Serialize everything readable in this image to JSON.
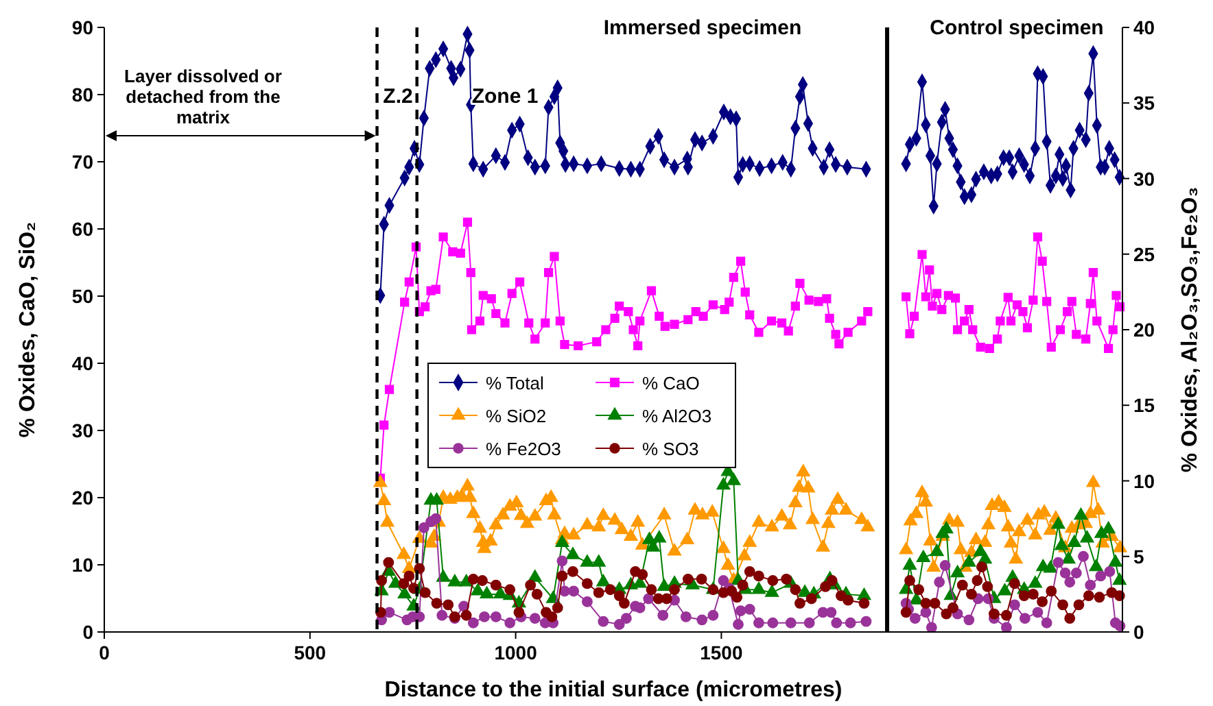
{
  "chart_data": {
    "type": "line",
    "xlabel": "Distance to the initial surface (micrometres)",
    "ylabel": "% Oxides, CaO, SiO₂",
    "y2label": "% Oxides, Al₂O₃,SO₃,Fe₂O₃",
    "xlim": [
      0,
      2475
    ],
    "xticks": [
      0,
      500,
      1000,
      1500
    ],
    "ylim": [
      0,
      90
    ],
    "yticks": [
      0,
      10,
      20,
      30,
      40,
      50,
      60,
      70,
      80,
      90
    ],
    "y2lim": [
      0,
      40
    ],
    "y2ticks": [
      0,
      5,
      10,
      15,
      20,
      25,
      30,
      35,
      40
    ],
    "legend": "center",
    "line_style": "solid",
    "ref_lines": [
      {
        "axis": "x",
        "value": 663,
        "color": "#000000",
        "line_style": "dashed"
      },
      {
        "axis": "x",
        "value": 760,
        "color": "#000000",
        "line_style": "dashed"
      },
      {
        "axis": "x",
        "value": 1903,
        "color": "#000000",
        "line_style": "solid"
      }
    ],
    "annotations": [
      "Immersed specimen",
      "Control specimen",
      "Z.2",
      "Zone 1",
      "Layer dissolved or detached from the matrix"
    ],
    "series": [
      {
        "name": "% Total",
        "color": "#000080",
        "marker": "diamond",
        "x": [
          671,
          680,
          693,
          730,
          741,
          754,
          766,
          777,
          791,
          806,
          824,
          843,
          849,
          866,
          883,
          888,
          891,
          897,
          921,
          952,
          974,
          991,
          1010,
          1030,
          1047,
          1072,
          1080,
          1094,
          1102,
          1108,
          1116,
          1121,
          1141,
          1174,
          1208,
          1252,
          1280,
          1302,
          1327,
          1347,
          1361,
          1386,
          1417,
          1419,
          1436,
          1453,
          1480,
          1506,
          1522,
          1536,
          1541,
          1552,
          1569,
          1593,
          1622,
          1649,
          1669,
          1680,
          1691,
          1698,
          1711,
          1722,
          1749,
          1763,
          1778,
          1806,
          1852,
          1900,
          1949,
          1958,
          1974,
          1988,
          1997,
          2008,
          2016,
          2024,
          2036,
          2044,
          2054,
          2063,
          2074,
          2082,
          2091,
          2108,
          2119,
          2138,
          2156,
          2171,
          2186,
          2200,
          2208,
          2224,
          2236,
          2250,
          2263,
          2269,
          2282,
          2291,
          2300,
          2313,
          2322,
          2330,
          2338,
          2349,
          2356,
          2371,
          2386,
          2393,
          2404,
          2413,
          2422,
          2432,
          2443,
          2456,
          2468
        ],
        "values": [
          50.1,
          60.7,
          63.5,
          67.6,
          69.2,
          72.0,
          69.6,
          76.5,
          83.9,
          85.2,
          86.8,
          83.9,
          82.5,
          83.8,
          89.0,
          86.6,
          78.5,
          69.7,
          68.9,
          70.9,
          69.9,
          74.7,
          75.6,
          70.6,
          69.2,
          69.4,
          78.1,
          79.7,
          81.0,
          72.8,
          71.6,
          69.6,
          69.7,
          69.4,
          69.7,
          69.0,
          68.9,
          68.9,
          72.3,
          73.8,
          70.3,
          69.2,
          70.4,
          69.2,
          73.3,
          72.8,
          73.8,
          77.4,
          76.7,
          76.4,
          67.7,
          69.6,
          69.7,
          69.0,
          69.4,
          69.9,
          68.9,
          75.0,
          79.7,
          81.5,
          75.7,
          72.0,
          69.2,
          71.8,
          69.6,
          69.2,
          68.9,
          null,
          69.7,
          72.6,
          73.5,
          81.9,
          75.5,
          70.9,
          63.4,
          69.7,
          75.9,
          77.8,
          73.5,
          71.8,
          69.4,
          67.0,
          64.8,
          65.1,
          67.4,
          68.5,
          67.9,
          68.2,
          70.6,
          70.6,
          68.5,
          70.9,
          69.6,
          67.9,
          72.0,
          83.1,
          82.7,
          73.0,
          66.5,
          67.9,
          71.1,
          67.5,
          69.4,
          65.8,
          72.0,
          74.7,
          73.3,
          80.2,
          86.1,
          75.4,
          69.2,
          69.2,
          72.0,
          70.3,
          67.7
        ]
      },
      {
        "name": "% CaO",
        "color": "#ff00ff",
        "marker": "square",
        "x": [
          671,
          680,
          693,
          730,
          741,
          758,
          766,
          780,
          794,
          806,
          824,
          847,
          866,
          883,
          891,
          893,
          913,
          921,
          941,
          952,
          974,
          991,
          1010,
          1032,
          1047,
          1072,
          1080,
          1094,
          1108,
          1119,
          1152,
          1197,
          1219,
          1241,
          1252,
          1274,
          1286,
          1297,
          1302,
          1330,
          1349,
          1363,
          1386,
          1419,
          1438,
          1456,
          1480,
          1508,
          1519,
          1530,
          1547,
          1558,
          1569,
          1591,
          1622,
          1647,
          1663,
          1680,
          1691,
          1713,
          1736,
          1756,
          1763,
          1778,
          1786,
          1808,
          1841,
          1856,
          1900,
          1949,
          1958,
          1969,
          1988,
          1997,
          2006,
          2013,
          2024,
          2036,
          2052,
          2069,
          2074,
          2091,
          2102,
          2111,
          2130,
          2152,
          2171,
          2178,
          2197,
          2204,
          2219,
          2233,
          2244,
          2258,
          2269,
          2280,
          2291,
          2302,
          2324,
          2341,
          2352,
          2363,
          2386,
          2397,
          2404,
          2413,
          2441,
          2452,
          2460,
          2469
        ],
        "values": [
          22.9,
          30.8,
          36.1,
          49.1,
          52.1,
          57.3,
          47.7,
          48.4,
          50.8,
          51.0,
          58.8,
          56.6,
          56.4,
          61.0,
          53.5,
          45.0,
          46.3,
          50.1,
          49.6,
          47.4,
          46.0,
          50.4,
          52.1,
          46.0,
          43.6,
          46.0,
          53.5,
          55.9,
          46.3,
          42.8,
          42.6,
          43.2,
          45.0,
          46.7,
          48.5,
          47.7,
          45.0,
          42.6,
          46.3,
          50.8,
          47.0,
          45.5,
          45.8,
          46.5,
          47.7,
          47.0,
          48.7,
          48.0,
          49.1,
          52.8,
          55.2,
          50.6,
          47.2,
          44.6,
          46.3,
          46.0,
          44.8,
          48.5,
          51.9,
          49.4,
          49.2,
          49.6,
          46.7,
          44.3,
          42.9,
          44.6,
          46.3,
          47.7,
          null,
          49.9,
          44.4,
          47.0,
          56.2,
          49.9,
          53.9,
          48.5,
          50.4,
          48.0,
          50.1,
          49.7,
          45.0,
          46.3,
          48.0,
          45.0,
          42.4,
          42.2,
          43.6,
          46.3,
          49.8,
          46.3,
          48.7,
          47.7,
          45.3,
          49.4,
          58.8,
          55.2,
          49.2,
          42.4,
          45.0,
          47.7,
          49.2,
          44.3,
          43.6,
          48.9,
          53.5,
          46.3,
          42.2,
          45.0,
          50.1,
          48.4
        ]
      },
      {
        "name": "% SiO2",
        "color": "#ff9900",
        "marker": "triangle",
        "x": [
          671,
          680,
          688,
          728,
          741,
          766,
          794,
          802,
          813,
          824,
          841,
          858,
          869,
          883,
          889,
          897,
          913,
          921,
          924,
          939,
          952,
          969,
          986,
          1002,
          1013,
          1028,
          1047,
          1074,
          1086,
          1094,
          1113,
          1119,
          1141,
          1174,
          1202,
          1213,
          1241,
          1258,
          1280,
          1297,
          1308,
          1361,
          1386,
          1417,
          1436,
          1454,
          1478,
          1505,
          1516,
          1530,
          1556,
          1569,
          1591,
          1623,
          1647,
          1667,
          1680,
          1689,
          1699,
          1711,
          1722,
          1747,
          1760,
          1769,
          1783,
          1803,
          1841,
          1856,
          1900,
          1949,
          1960,
          1974,
          1988,
          1997,
          2008,
          2016,
          2038,
          2054,
          2074,
          2082,
          2093,
          2108,
          2119,
          2141,
          2149,
          2158,
          2174,
          2188,
          2197,
          2204,
          2216,
          2224,
          2244,
          2263,
          2271,
          2285,
          2300,
          2313,
          2336,
          2352,
          2369,
          2386,
          2397,
          2404,
          2416,
          2427,
          2449,
          2469
        ],
        "values": [
          22.2,
          19.5,
          16.3,
          11.5,
          9.4,
          13.9,
          13.2,
          14.2,
          16.3,
          20.0,
          19.7,
          20.0,
          20.2,
          21.7,
          20.0,
          17.6,
          15.4,
          13.3,
          12.4,
          13.5,
          15.9,
          17.4,
          18.7,
          19.2,
          17.3,
          16.1,
          17.2,
          19.5,
          20.0,
          17.4,
          13.7,
          14.6,
          14.4,
          15.9,
          15.6,
          17.3,
          16.6,
          15.2,
          14.2,
          16.3,
          12.9,
          17.4,
          12.0,
          13.7,
          18.1,
          17.4,
          17.8,
          12.4,
          9.9,
          7.7,
          11.3,
          13.3,
          16.3,
          15.6,
          17.2,
          15.9,
          19.2,
          21.5,
          23.8,
          21.4,
          16.7,
          12.6,
          16.1,
          18.1,
          19.7,
          18.1,
          16.7,
          15.6,
          null,
          12.2,
          16.5,
          17.6,
          20.7,
          19.3,
          13.5,
          9.6,
          14.2,
          16.6,
          16.3,
          12.2,
          9.6,
          11.8,
          13.7,
          13.3,
          15.9,
          18.8,
          19.3,
          18.5,
          15.6,
          13.2,
          10.8,
          14.9,
          16.6,
          14.4,
          17.4,
          17.8,
          15.1,
          16.9,
          12.5,
          15.4,
          15.9,
          16.1,
          17.6,
          22.2,
          18.1,
          13.2,
          14.2,
          12.5
        ]
      },
      {
        "name": "% Al2O3",
        "color": "#008000",
        "marker": "triangle",
        "axis": "y2",
        "x": [
          674,
          691,
          708,
          730,
          752,
          766,
          794,
          808,
          824,
          852,
          880,
          908,
          930,
          963,
          986,
          1008,
          1047,
          1091,
          1113,
          1139,
          1174,
          1202,
          1213,
          1252,
          1280,
          1302,
          1325,
          1334,
          1349,
          1361,
          1386,
          1430,
          1480,
          1505,
          1516,
          1530,
          1541,
          1558,
          1591,
          1623,
          1669,
          1703,
          1725,
          1764,
          1775,
          1803,
          1847,
          1900,
          1949,
          1958,
          1974,
          1991,
          2024,
          2038,
          2047,
          2058,
          2074,
          2102,
          2130,
          2141,
          2163,
          2189,
          2208,
          2236,
          2263,
          2282,
          2300,
          2319,
          2327,
          2344,
          2358,
          2374,
          2389,
          2411,
          2424,
          2441,
          2458,
          2468
        ],
        "values": [
          2.7,
          4.0,
          3.2,
          2.5,
          1.7,
          2.8,
          8.7,
          8.7,
          3.6,
          3.3,
          3.3,
          2.7,
          2.5,
          2.5,
          2.4,
          1.9,
          3.6,
          2.2,
          5.9,
          5.1,
          4.6,
          4.6,
          3.3,
          2.8,
          3.1,
          3.2,
          6.1,
          5.6,
          6.2,
          3.0,
          3.2,
          3.1,
          2.8,
          9.7,
          10.6,
          10.0,
          3.4,
          2.8,
          2.8,
          2.6,
          3.2,
          2.6,
          2.5,
          3.5,
          3.1,
          2.5,
          2.4,
          null,
          2.8,
          4.4,
          2.1,
          4.9,
          5.3,
          6.5,
          6.8,
          2.4,
          3.9,
          4.6,
          5.3,
          4.8,
          2.2,
          2.7,
          3.6,
          2.8,
          3.2,
          4.3,
          4.2,
          7.1,
          5.7,
          4.8,
          5.9,
          7.7,
          6.2,
          4.3,
          6.5,
          6.8,
          4.6,
          3.4
        ]
      },
      {
        "name": "% Fe2O3",
        "color": "#993399",
        "marker": "circle",
        "axis": "y2",
        "x": [
          674,
          693,
          736,
          750,
          766,
          777,
          794,
          806,
          821,
          852,
          874,
          897,
          924,
          952,
          986,
          1013,
          1047,
          1072,
          1091,
          1113,
          1119,
          1141,
          1174,
          1213,
          1252,
          1269,
          1291,
          1302,
          1323,
          1358,
          1386,
          1414,
          1453,
          1480,
          1505,
          1519,
          1541,
          1547,
          1569,
          1591,
          1625,
          1669,
          1714,
          1747,
          1767,
          1780,
          1814,
          1852,
          1900,
          1949,
          1955,
          1971,
          1997,
          2011,
          2030,
          2044,
          2074,
          2102,
          2124,
          2149,
          2163,
          2193,
          2213,
          2238,
          2269,
          2291,
          2319,
          2336,
          2347,
          2363,
          2380,
          2397,
          2422,
          2444,
          2458,
          2469
        ],
        "values": [
          0.8,
          1.3,
          0.8,
          1.0,
          1.0,
          6.9,
          7.3,
          7.5,
          1.1,
          0.9,
          1.7,
          0.6,
          1.0,
          1.0,
          0.6,
          1.0,
          0.9,
          0.6,
          0.6,
          4.7,
          2.7,
          2.7,
          2.0,
          0.7,
          0.5,
          0.9,
          1.7,
          1.6,
          2.2,
          1.1,
          2.1,
          1.0,
          0.8,
          1.1,
          3.4,
          2.9,
          0.5,
          1.4,
          1.5,
          0.6,
          0.6,
          0.6,
          0.6,
          1.3,
          1.3,
          0.6,
          0.6,
          0.7,
          null,
          1.9,
          1.5,
          0.9,
          1.3,
          0.3,
          3.3,
          4.4,
          1.2,
          0.8,
          2.2,
          2.2,
          0.9,
          0.3,
          1.8,
          0.9,
          1.3,
          0.6,
          4.6,
          3.9,
          3.3,
          3.9,
          5.0,
          3.1,
          3.7,
          4.0,
          0.6,
          0.4
        ]
      },
      {
        "name": "% SO3",
        "color": "#800000",
        "marker": "circle",
        "axis": "y2",
        "x": [
          672,
          674,
          691,
          728,
          741,
          752,
          766,
          780,
          808,
          836,
          852,
          880,
          897,
          919,
          952,
          986,
          1008,
          1036,
          1052,
          1074,
          1088,
          1102,
          1113,
          1139,
          1174,
          1202,
          1230,
          1252,
          1264,
          1291,
          1308,
          1330,
          1347,
          1367,
          1386,
          1419,
          1452,
          1480,
          1505,
          1525,
          1538,
          1552,
          1569,
          1591,
          1625,
          1658,
          1680,
          1691,
          1719,
          1753,
          1769,
          1791,
          1808,
          1847,
          1900,
          1949,
          1958,
          1980,
          1997,
          2019,
          2047,
          2063,
          2086,
          2108,
          2122,
          2133,
          2147,
          2163,
          2193,
          2213,
          2236,
          2258,
          2280,
          2302,
          2330,
          2347,
          2369,
          2393,
          2419,
          2449,
          2468
        ],
        "values": [
          1.3,
          3.4,
          4.6,
          3.2,
          3.7,
          2.9,
          4.2,
          2.6,
          1.9,
          1.8,
          1.0,
          1.1,
          3.5,
          3.4,
          3.1,
          2.8,
          1.3,
          3.1,
          2.5,
          1.3,
          1.0,
          1.6,
          3.7,
          4.0,
          3.2,
          2.6,
          2.8,
          2.4,
          1.9,
          4.0,
          3.8,
          2.8,
          2.2,
          2.2,
          2.8,
          3.5,
          3.5,
          2.8,
          2.6,
          2.7,
          2.3,
          3.1,
          4.0,
          3.7,
          3.4,
          3.5,
          2.8,
          1.9,
          2.2,
          3.0,
          3.4,
          2.4,
          2.1,
          1.9,
          null,
          1.3,
          3.4,
          2.8,
          1.9,
          1.9,
          1.2,
          1.6,
          3.1,
          2.5,
          3.4,
          4.3,
          3.0,
          1.2,
          1.1,
          3.2,
          2.4,
          2.5,
          2.0,
          2.7,
          1.8,
          0.9,
          1.8,
          2.4,
          2.3,
          2.6,
          2.4
        ]
      }
    ]
  }
}
